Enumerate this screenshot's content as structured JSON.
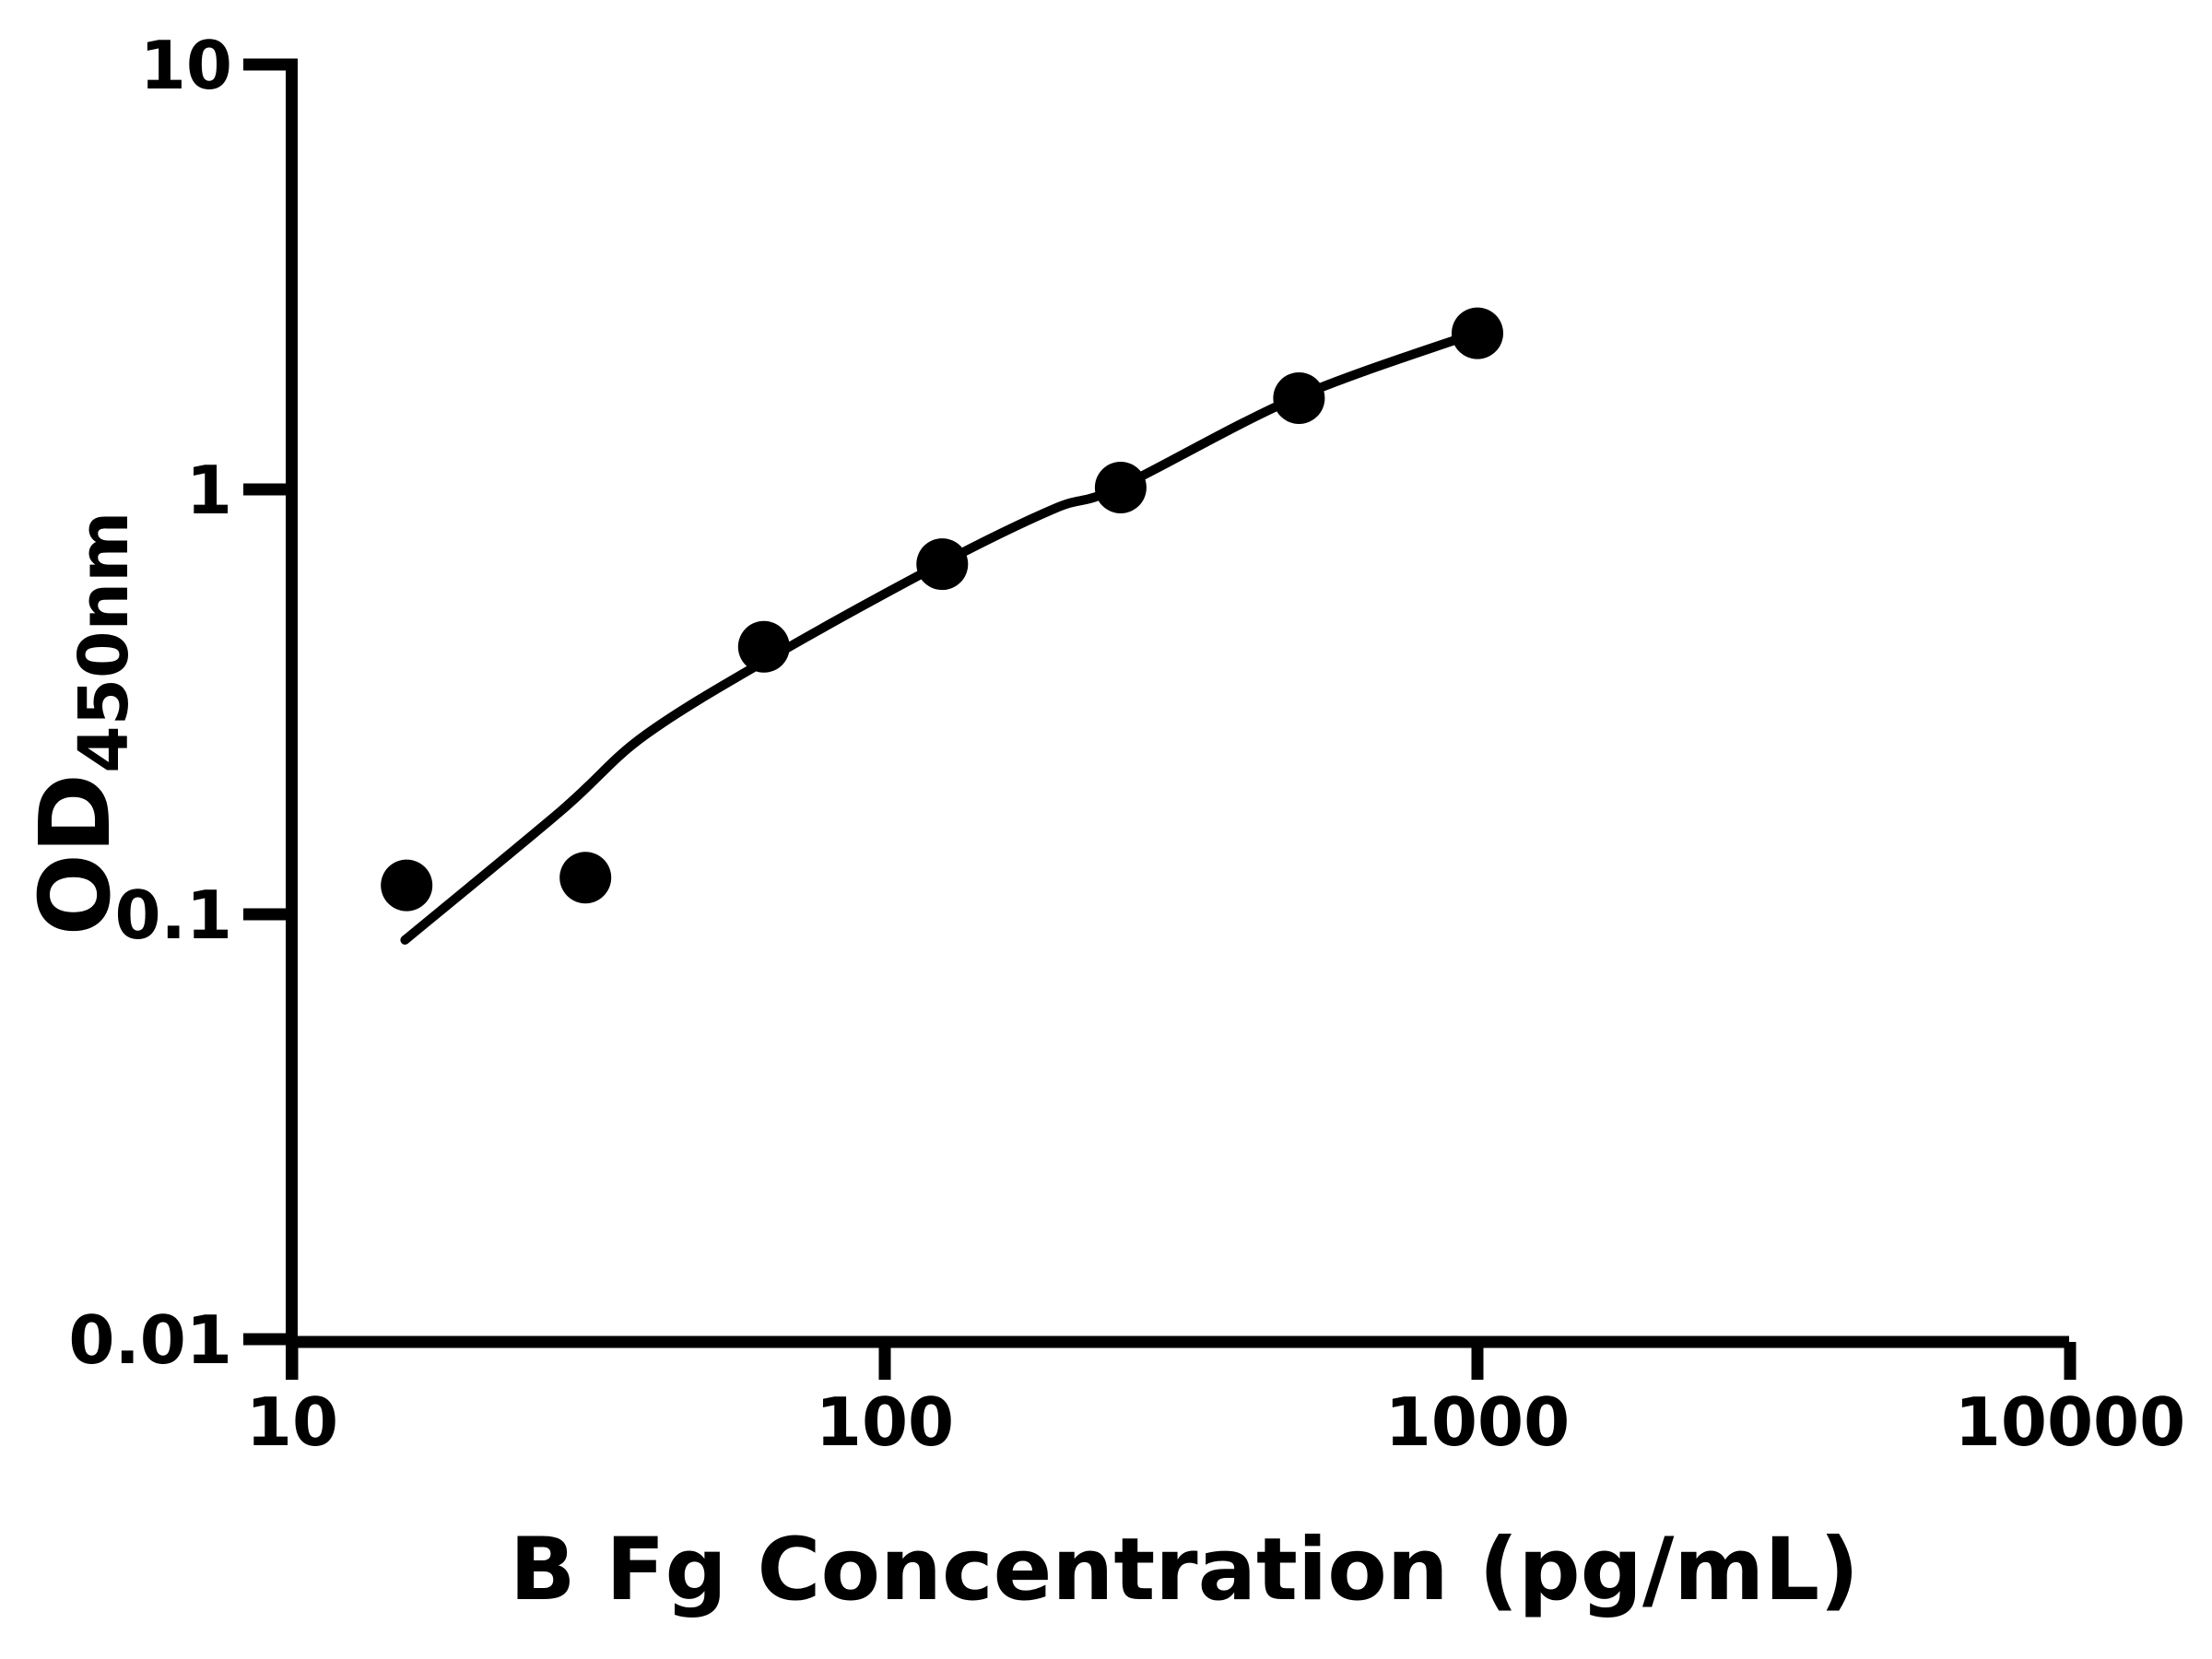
{
  "page": {
    "background": "#ffffff",
    "ink_color": "#000000"
  },
  "chart_data": {
    "type": "scatter",
    "title": "",
    "xlabel": "B Fg Concentration (pg/mL)",
    "ylabel": "OD",
    "ylabel_subscript": "450nm",
    "x_scale": "log10",
    "y_scale": "log10",
    "xlim": [
      10,
      10000
    ],
    "ylim": [
      0.01,
      10
    ],
    "grid": false,
    "legend": "none",
    "marker": "filled-circle",
    "marker_color": "#000000",
    "line_color": "#000000",
    "x_ticks": [
      {
        "value": 10,
        "label": "10"
      },
      {
        "value": 100,
        "label": "100"
      },
      {
        "value": 1000,
        "label": "1000"
      },
      {
        "value": 10000,
        "label": "10000"
      }
    ],
    "y_ticks": [
      {
        "value": 10,
        "label": "10"
      },
      {
        "value": 1,
        "label": "1"
      },
      {
        "value": 0.1,
        "label": "0.1"
      },
      {
        "value": 0.01,
        "label": "0.01"
      }
    ],
    "series": [
      {
        "name": "standard-points",
        "type": "scatter",
        "points": [
          {
            "x": 15.6,
            "od": 0.117
          },
          {
            "x": 31.25,
            "od": 0.122
          },
          {
            "x": 62.5,
            "od": 0.426
          },
          {
            "x": 125,
            "od": 0.667
          },
          {
            "x": 250,
            "od": 1.01
          },
          {
            "x": 500,
            "od": 1.64
          },
          {
            "x": 1000,
            "od": 2.33
          }
        ]
      },
      {
        "name": "fit-curve",
        "type": "line",
        "points": [
          {
            "x": 15.5,
            "od": 0.087
          },
          {
            "x": 28.4,
            "od": 0.175
          },
          {
            "x": 39.4,
            "od": 0.264
          },
          {
            "x": 65.8,
            "od": 0.41
          },
          {
            "x": 124,
            "od": 0.667
          },
          {
            "x": 193,
            "od": 0.9
          },
          {
            "x": 248,
            "od": 1.01
          },
          {
            "x": 492,
            "od": 1.64
          },
          {
            "x": 990,
            "od": 2.33
          }
        ]
      }
    ]
  }
}
